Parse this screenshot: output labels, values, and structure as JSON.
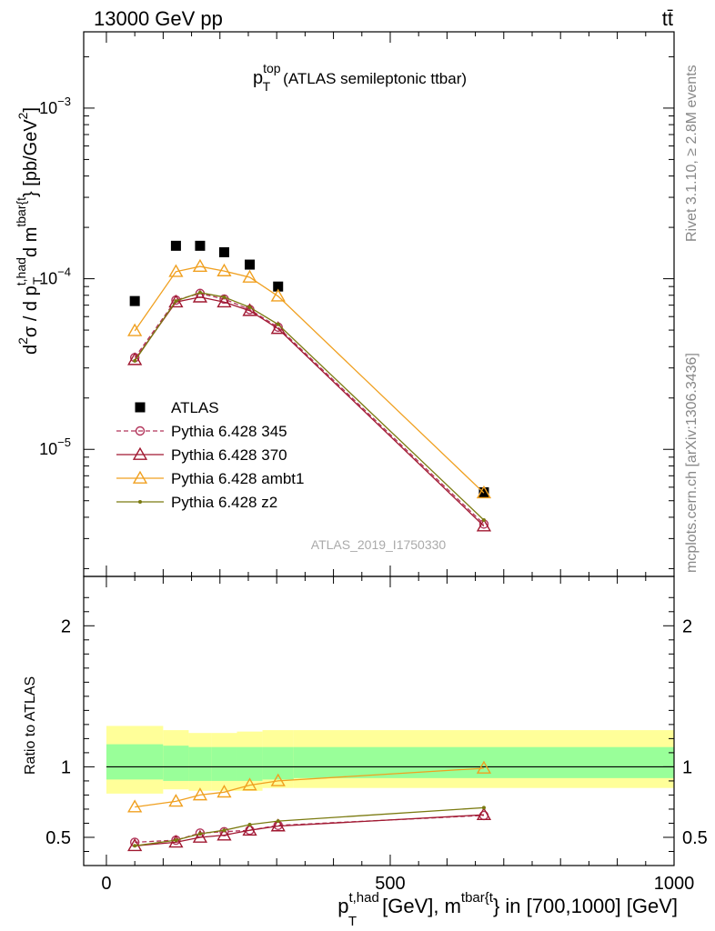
{
  "header": {
    "left": "13000 GeV pp",
    "right": "tt̄"
  },
  "side_labels": {
    "rivet": "Rivet 3.1.10, ≥ 2.8M events",
    "mcplots": "mcplots.cern.ch [arXiv:1306.3436]"
  },
  "analysis_id": "ATLAS_2019_I1750330",
  "chart_data": [
    {
      "type": "line",
      "title": {
        "main": "p",
        "sup": "top",
        "sub": "T",
        "rest": "(ATLAS semileptonic ttbar)"
      },
      "ylabel": {
        "d2": "d",
        "sup2": "2",
        "sigma": "σ / d p",
        "sup_t_had": "t,had",
        "sub_T": "T",
        "d_m": " d m",
        "sup_tbar": "tbar{t",
        "close": "} [pb/GeV",
        "unit_sup": "2",
        "end": "]"
      },
      "yscale": "log",
      "ylim": [
        1.8e-06,
        0.0028
      ],
      "xlim": [
        -40,
        1000
      ],
      "yticks": [
        {
          "value": 1e-05,
          "base": "10",
          "exp": "−5"
        },
        {
          "value": 0.0001,
          "base": "10",
          "exp": "−4"
        },
        {
          "value": 0.001,
          "base": "10",
          "exp": "−3"
        }
      ],
      "legend_position": "lower-left",
      "series": [
        {
          "name": "ATLAS",
          "color": "#000000",
          "marker": "square",
          "x": [
            50,
            122.5,
            165,
            207.5,
            252.5,
            302.5,
            665
          ],
          "y": [
            7.4e-05,
            0.000156,
            0.000156,
            0.000143,
            0.000121,
            9e-05,
            5.6e-06
          ]
        },
        {
          "name": "Pythia 6.428 345",
          "color": "#b2345a",
          "marker": "circle-open",
          "dashed": true,
          "x": [
            50,
            122.5,
            165,
            207.5,
            252.5,
            302.5,
            665
          ],
          "y": [
            3.45e-05,
            7.5e-05,
            8.2e-05,
            7.6e-05,
            6.6e-05,
            5.2e-05,
            3.65e-06
          ]
        },
        {
          "name": "Pythia 6.428 370",
          "color": "#a01830",
          "marker": "triangle-open",
          "x": [
            50,
            122.5,
            165,
            207.5,
            252.5,
            302.5,
            665
          ],
          "y": [
            3.35e-05,
            7.3e-05,
            7.8e-05,
            7.3e-05,
            6.5e-05,
            5.1e-05,
            3.55e-06
          ]
        },
        {
          "name": "Pythia 6.428 ambt1",
          "color": "#f0a020",
          "marker": "triangle-open",
          "x": [
            50,
            122.5,
            165,
            207.5,
            252.5,
            302.5,
            665
          ],
          "y": [
            4.95e-05,
            0.00011,
            0.000118,
            0.000111,
            0.000102,
            7.9e-05,
            5.55e-06
          ]
        },
        {
          "name": "Pythia 6.428 z2",
          "color": "#7a7a10",
          "marker": "dot",
          "x": [
            50,
            122.5,
            165,
            207.5,
            252.5,
            302.5,
            665
          ],
          "y": [
            3.3e-05,
            7.4e-05,
            8.3e-05,
            7.8e-05,
            6.8e-05,
            5.4e-05,
            3.85e-06
          ]
        }
      ]
    },
    {
      "type": "line",
      "ylabel": "Ratio to ATLAS",
      "xlabel": {
        "p": "p",
        "sup_t_had": "t,had",
        "sub_T": "T",
        "gev": " [GeV], m",
        "sup_tbar": "tbar{t",
        "rest": "} in [700,1000] [GeV]"
      },
      "ylim": [
        0.3,
        2.35
      ],
      "xlim": [
        -40,
        1000
      ],
      "yticks": [
        0.5,
        1,
        2
      ],
      "ytick_labels": [
        "0.5",
        "1",
        "2"
      ],
      "xticks": [
        0,
        500,
        1000
      ],
      "xtick_labels": [
        "0",
        "500",
        "1000"
      ],
      "bins": [
        0,
        100,
        145,
        185,
        230,
        275,
        330,
        1000
      ],
      "band_inner": [
        [
          0.91,
          1.16
        ],
        [
          0.9,
          1.15
        ],
        [
          0.9,
          1.14
        ],
        [
          0.9,
          1.14
        ],
        [
          0.9,
          1.14
        ],
        [
          0.91,
          1.14
        ],
        [
          0.92,
          1.14
        ]
      ],
      "band_outer": [
        [
          0.81,
          1.29
        ],
        [
          0.84,
          1.26
        ],
        [
          0.83,
          1.24
        ],
        [
          0.83,
          1.24
        ],
        [
          0.83,
          1.25
        ],
        [
          0.85,
          1.26
        ],
        [
          0.85,
          1.26
        ]
      ],
      "band_colors": {
        "inner": "#99ff99",
        "outer": "#ffff99"
      },
      "series": [
        {
          "name": "Pythia 6.428 345",
          "color": "#b2345a",
          "marker": "circle-open",
          "dashed": true,
          "x": [
            50,
            122.5,
            165,
            207.5,
            252.5,
            302.5,
            665
          ],
          "y": [
            0.465,
            0.48,
            0.53,
            0.54,
            0.55,
            0.585,
            0.655
          ]
        },
        {
          "name": "Pythia 6.428 370",
          "color": "#a01830",
          "marker": "triangle-open",
          "x": [
            50,
            122.5,
            165,
            207.5,
            252.5,
            302.5,
            665
          ],
          "y": [
            0.44,
            0.465,
            0.5,
            0.515,
            0.55,
            0.58,
            0.66
          ]
        },
        {
          "name": "Pythia 6.428 ambt1",
          "color": "#f0a020",
          "marker": "triangle-open",
          "x": [
            50,
            122.5,
            165,
            207.5,
            252.5,
            302.5,
            665
          ],
          "y": [
            0.715,
            0.755,
            0.8,
            0.82,
            0.87,
            0.9,
            0.99
          ]
        },
        {
          "name": "Pythia 6.428 z2",
          "color": "#7a7a10",
          "marker": "dot",
          "x": [
            50,
            122.5,
            165,
            207.5,
            252.5,
            302.5,
            665
          ],
          "y": [
            0.44,
            0.48,
            0.525,
            0.55,
            0.59,
            0.615,
            0.71
          ]
        }
      ]
    }
  ]
}
